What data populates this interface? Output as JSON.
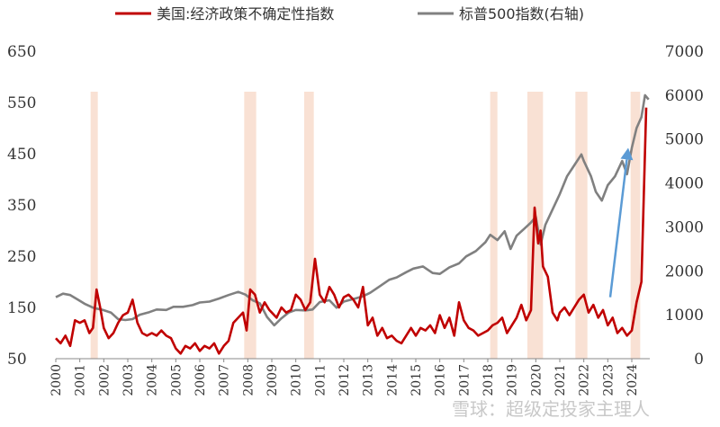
{
  "chart_data": {
    "type": "line",
    "title": "",
    "legend": {
      "placement": "top"
    },
    "x_axis": {
      "range": [
        2000,
        2024.75
      ],
      "ticks": [
        "2000",
        "2001",
        "2002",
        "2003",
        "2004",
        "2005",
        "2006",
        "2007",
        "2008",
        "2009",
        "2010",
        "2011",
        "2012",
        "2013",
        "2014",
        "2015",
        "2016",
        "2017",
        "2018",
        "2019",
        "2020",
        "2021",
        "2022",
        "2023",
        "2024"
      ]
    },
    "y_axis_left": {
      "range": [
        50,
        650
      ],
      "ticks": [
        50,
        150,
        250,
        350,
        450,
        550,
        650
      ]
    },
    "y_axis_right": {
      "range": [
        0,
        7000
      ],
      "ticks": [
        0,
        1000,
        2000,
        3000,
        4000,
        5000,
        6000,
        7000
      ]
    },
    "shaded_periods": [
      {
        "start": 2001.45,
        "end": 2001.75
      },
      {
        "start": 2007.85,
        "end": 2008.35
      },
      {
        "start": 2010.35,
        "end": 2010.75
      },
      {
        "start": 2018.1,
        "end": 2018.4
      },
      {
        "start": 2019.65,
        "end": 2020.3
      },
      {
        "start": 2021.65,
        "end": 2022.15
      },
      {
        "start": 2023.95,
        "end": 2024.35
      }
    ],
    "series": [
      {
        "name": "美国:经济政策不确定性指数",
        "axis": "left",
        "color": "#c00000",
        "points": [
          [
            2000.0,
            90
          ],
          [
            2000.2,
            80
          ],
          [
            2000.4,
            95
          ],
          [
            2000.6,
            75
          ],
          [
            2000.8,
            125
          ],
          [
            2001.0,
            120
          ],
          [
            2001.2,
            125
          ],
          [
            2001.4,
            100
          ],
          [
            2001.55,
            110
          ],
          [
            2001.7,
            185
          ],
          [
            2001.85,
            150
          ],
          [
            2002.0,
            110
          ],
          [
            2002.2,
            90
          ],
          [
            2002.4,
            100
          ],
          [
            2002.6,
            120
          ],
          [
            2002.8,
            135
          ],
          [
            2003.0,
            140
          ],
          [
            2003.2,
            165
          ],
          [
            2003.4,
            120
          ],
          [
            2003.6,
            100
          ],
          [
            2003.8,
            95
          ],
          [
            2004.0,
            100
          ],
          [
            2004.2,
            95
          ],
          [
            2004.4,
            105
          ],
          [
            2004.6,
            95
          ],
          [
            2004.8,
            90
          ],
          [
            2005.0,
            70
          ],
          [
            2005.2,
            60
          ],
          [
            2005.4,
            75
          ],
          [
            2005.6,
            70
          ],
          [
            2005.8,
            80
          ],
          [
            2006.0,
            65
          ],
          [
            2006.2,
            75
          ],
          [
            2006.4,
            70
          ],
          [
            2006.6,
            80
          ],
          [
            2006.8,
            60
          ],
          [
            2007.0,
            75
          ],
          [
            2007.2,
            85
          ],
          [
            2007.4,
            120
          ],
          [
            2007.6,
            130
          ],
          [
            2007.8,
            140
          ],
          [
            2007.95,
            105
          ],
          [
            2008.1,
            185
          ],
          [
            2008.3,
            175
          ],
          [
            2008.5,
            140
          ],
          [
            2008.7,
            160
          ],
          [
            2008.9,
            145
          ],
          [
            2009.0,
            140
          ],
          [
            2009.2,
            130
          ],
          [
            2009.4,
            150
          ],
          [
            2009.6,
            140
          ],
          [
            2009.8,
            145
          ],
          [
            2010.0,
            175
          ],
          [
            2010.2,
            165
          ],
          [
            2010.4,
            145
          ],
          [
            2010.6,
            160
          ],
          [
            2010.8,
            245
          ],
          [
            2011.0,
            175
          ],
          [
            2011.2,
            160
          ],
          [
            2011.4,
            190
          ],
          [
            2011.6,
            175
          ],
          [
            2011.8,
            150
          ],
          [
            2012.0,
            170
          ],
          [
            2012.2,
            175
          ],
          [
            2012.4,
            165
          ],
          [
            2012.6,
            150
          ],
          [
            2012.8,
            190
          ],
          [
            2013.0,
            115
          ],
          [
            2013.2,
            130
          ],
          [
            2013.4,
            95
          ],
          [
            2013.6,
            110
          ],
          [
            2013.8,
            90
          ],
          [
            2014.0,
            95
          ],
          [
            2014.2,
            85
          ],
          [
            2014.4,
            80
          ],
          [
            2014.6,
            95
          ],
          [
            2014.8,
            110
          ],
          [
            2015.0,
            95
          ],
          [
            2015.2,
            110
          ],
          [
            2015.4,
            105
          ],
          [
            2015.6,
            115
          ],
          [
            2015.8,
            100
          ],
          [
            2016.0,
            135
          ],
          [
            2016.2,
            110
          ],
          [
            2016.4,
            130
          ],
          [
            2016.6,
            95
          ],
          [
            2016.8,
            160
          ],
          [
            2017.0,
            125
          ],
          [
            2017.2,
            110
          ],
          [
            2017.4,
            105
          ],
          [
            2017.6,
            95
          ],
          [
            2017.8,
            100
          ],
          [
            2018.0,
            105
          ],
          [
            2018.2,
            115
          ],
          [
            2018.4,
            120
          ],
          [
            2018.6,
            130
          ],
          [
            2018.8,
            100
          ],
          [
            2019.0,
            115
          ],
          [
            2019.2,
            130
          ],
          [
            2019.4,
            155
          ],
          [
            2019.6,
            125
          ],
          [
            2019.8,
            145
          ],
          [
            2019.95,
            345
          ],
          [
            2020.1,
            275
          ],
          [
            2020.2,
            300
          ],
          [
            2020.3,
            230
          ],
          [
            2020.5,
            210
          ],
          [
            2020.7,
            140
          ],
          [
            2020.9,
            125
          ],
          [
            2021.0,
            140
          ],
          [
            2021.2,
            150
          ],
          [
            2021.4,
            135
          ],
          [
            2021.6,
            150
          ],
          [
            2021.8,
            165
          ],
          [
            2022.0,
            175
          ],
          [
            2022.2,
            140
          ],
          [
            2022.4,
            155
          ],
          [
            2022.6,
            130
          ],
          [
            2022.8,
            145
          ],
          [
            2023.0,
            115
          ],
          [
            2023.2,
            130
          ],
          [
            2023.4,
            100
          ],
          [
            2023.6,
            110
          ],
          [
            2023.8,
            95
          ],
          [
            2024.0,
            105
          ],
          [
            2024.2,
            160
          ],
          [
            2024.4,
            200
          ],
          [
            2024.6,
            540
          ]
        ]
      },
      {
        "name": "标普500指数(右轴)",
        "axis": "right",
        "color": "#808080",
        "points": [
          [
            2000.0,
            1400
          ],
          [
            2000.3,
            1480
          ],
          [
            2000.6,
            1450
          ],
          [
            2000.9,
            1350
          ],
          [
            2001.2,
            1250
          ],
          [
            2001.6,
            1150
          ],
          [
            2001.9,
            1120
          ],
          [
            2002.3,
            1050
          ],
          [
            2002.6,
            900
          ],
          [
            2002.9,
            880
          ],
          [
            2003.2,
            900
          ],
          [
            2003.5,
            1000
          ],
          [
            2003.9,
            1060
          ],
          [
            2004.2,
            1120
          ],
          [
            2004.6,
            1110
          ],
          [
            2004.9,
            1180
          ],
          [
            2005.3,
            1180
          ],
          [
            2005.7,
            1220
          ],
          [
            2006.0,
            1280
          ],
          [
            2006.4,
            1300
          ],
          [
            2006.8,
            1370
          ],
          [
            2007.2,
            1450
          ],
          [
            2007.6,
            1520
          ],
          [
            2007.9,
            1460
          ],
          [
            2008.2,
            1330
          ],
          [
            2008.5,
            1260
          ],
          [
            2008.8,
            950
          ],
          [
            2009.1,
            760
          ],
          [
            2009.4,
            920
          ],
          [
            2009.7,
            1050
          ],
          [
            2010.0,
            1110
          ],
          [
            2010.4,
            1100
          ],
          [
            2010.7,
            1120
          ],
          [
            2011.0,
            1290
          ],
          [
            2011.4,
            1330
          ],
          [
            2011.7,
            1160
          ],
          [
            2012.0,
            1300
          ],
          [
            2012.4,
            1360
          ],
          [
            2012.8,
            1420
          ],
          [
            2013.1,
            1500
          ],
          [
            2013.5,
            1650
          ],
          [
            2013.9,
            1800
          ],
          [
            2014.2,
            1850
          ],
          [
            2014.6,
            1970
          ],
          [
            2014.9,
            2050
          ],
          [
            2015.3,
            2100
          ],
          [
            2015.7,
            1950
          ],
          [
            2016.0,
            1930
          ],
          [
            2016.4,
            2080
          ],
          [
            2016.8,
            2170
          ],
          [
            2017.1,
            2330
          ],
          [
            2017.5,
            2450
          ],
          [
            2017.9,
            2650
          ],
          [
            2018.1,
            2820
          ],
          [
            2018.4,
            2700
          ],
          [
            2018.7,
            2900
          ],
          [
            2018.95,
            2500
          ],
          [
            2019.2,
            2800
          ],
          [
            2019.5,
            2950
          ],
          [
            2019.8,
            3100
          ],
          [
            2020.0,
            3230
          ],
          [
            2020.2,
            2600
          ],
          [
            2020.4,
            3050
          ],
          [
            2020.7,
            3400
          ],
          [
            2021.0,
            3750
          ],
          [
            2021.3,
            4150
          ],
          [
            2021.6,
            4400
          ],
          [
            2021.9,
            4650
          ],
          [
            2022.0,
            4500
          ],
          [
            2022.3,
            4150
          ],
          [
            2022.5,
            3800
          ],
          [
            2022.75,
            3600
          ],
          [
            2023.0,
            3950
          ],
          [
            2023.3,
            4150
          ],
          [
            2023.6,
            4500
          ],
          [
            2023.8,
            4200
          ],
          [
            2024.0,
            4800
          ],
          [
            2024.2,
            5250
          ],
          [
            2024.4,
            5500
          ],
          [
            2024.55,
            6000
          ],
          [
            2024.7,
            5900
          ]
        ]
      }
    ],
    "annotation": {
      "type": "arrow",
      "color": "#5b9bd5",
      "from": [
        2023.1,
        1400
      ],
      "to": [
        2023.85,
        4800
      ]
    }
  },
  "watermark": "雪球：超级定投家主理人"
}
